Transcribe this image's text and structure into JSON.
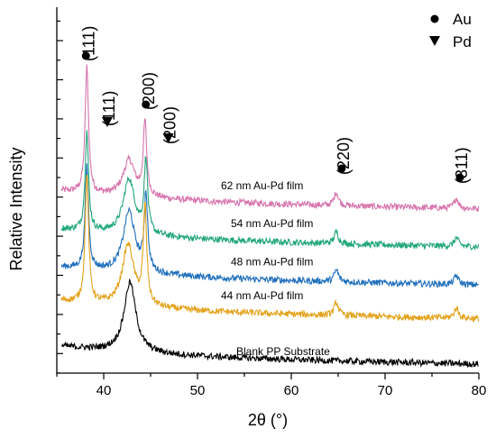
{
  "chart_data": {
    "type": "line",
    "xlabel": "2θ (°)",
    "ylabel": "Relative Intensity",
    "xlim": [
      35,
      80
    ],
    "x_ticks": [
      "40",
      "50",
      "60",
      "70",
      "80"
    ],
    "y_ticks_labeled": false,
    "grid": false,
    "legend": {
      "placement": "top-right",
      "entries": [
        {
          "marker": "circle",
          "label": "Au"
        },
        {
          "marker": "triangle-down",
          "label": "Pd"
        }
      ]
    },
    "series": [
      {
        "name": "62 nm Au-Pd film",
        "color": "#d774ad",
        "baseline": 5.85,
        "peaks": [
          [
            38.2,
            4.3
          ],
          [
            44.4,
            2.5
          ],
          [
            42.7,
            1.25
          ],
          [
            64.8,
            0.45
          ],
          [
            77.6,
            0.35
          ]
        ]
      },
      {
        "name": "54 nm Au-Pd film",
        "color": "#20a67a",
        "baseline": 4.55,
        "peaks": [
          [
            38.2,
            3.4
          ],
          [
            44.5,
            2.5
          ],
          [
            42.7,
            1.9
          ],
          [
            64.8,
            0.4
          ],
          [
            77.6,
            0.3
          ]
        ]
      },
      {
        "name": "48 nm Au-Pd film",
        "color": "#1f6fbd",
        "baseline": 3.25,
        "peaks": [
          [
            38.2,
            3.5
          ],
          [
            44.5,
            2.6
          ],
          [
            42.7,
            2.1
          ],
          [
            64.8,
            0.4
          ],
          [
            77.6,
            0.3
          ]
        ]
      },
      {
        "name": "44 nm Au-Pd film",
        "color": "#e3a21a",
        "baseline": 2.1,
        "peaks": [
          [
            38.2,
            4.4
          ],
          [
            44.4,
            3.3
          ],
          [
            42.6,
            2.1
          ],
          [
            64.8,
            0.45
          ],
          [
            77.6,
            0.35
          ]
        ]
      },
      {
        "name": "Blank PP Substrate",
        "color": "#000000",
        "baseline": 0.55,
        "peaks": [
          [
            42.8,
            2.4
          ]
        ]
      }
    ],
    "annotations": [
      {
        "marker": "circle",
        "text": "(111)",
        "x": 38.2
      },
      {
        "marker": "triangle-down",
        "text": "(111)",
        "x": 39.8
      },
      {
        "marker": "circle",
        "text": "(200)",
        "x": 44.4
      },
      {
        "marker": "triangle-down",
        "text": "(200)",
        "x": 46.5
      },
      {
        "marker": "circle",
        "text": "(220)",
        "x": 64.8
      },
      {
        "marker": "circle",
        "text": "(311)",
        "x": 77.6
      }
    ]
  }
}
